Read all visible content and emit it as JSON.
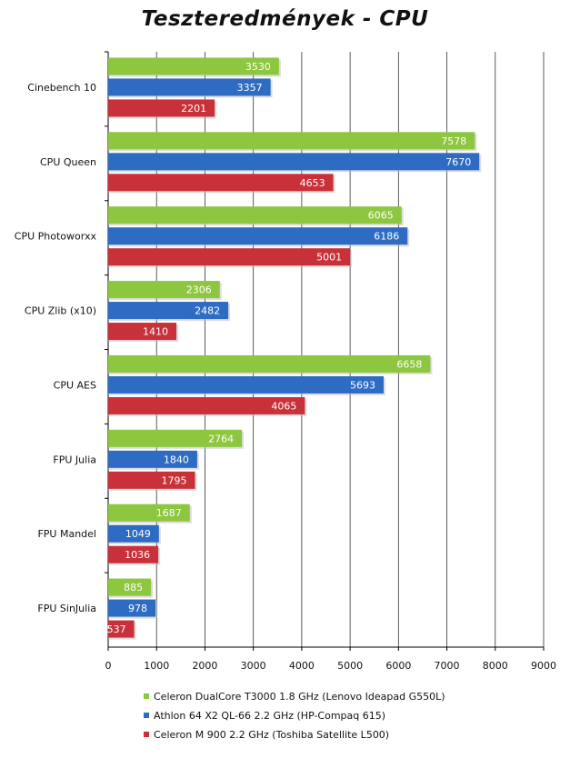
{
  "chart_data": {
    "type": "bar",
    "orientation": "horizontal",
    "title": "Teszteredmények - CPU",
    "categories": [
      "Cinebench 10",
      "CPU Queen",
      "CPU Photoworxx",
      "CPU Zlib (x10)",
      "CPU AES",
      "FPU Julia",
      "FPU Mandel",
      "FPU SinJulia"
    ],
    "series": [
      {
        "name": "Celeron DualCore T3000 1.8 GHz (Lenovo Ideapad G550L)",
        "color": "#8dc63f",
        "values": [
          3530,
          7578,
          6065,
          2306,
          6658,
          2764,
          1687,
          885
        ]
      },
      {
        "name": "Athlon 64 X2 QL-66 2.2 GHz (HP-Compaq 615)",
        "color": "#2e6cc4",
        "values": [
          3357,
          7670,
          6186,
          2482,
          5693,
          1840,
          1049,
          978
        ]
      },
      {
        "name": "Celeron M 900 2.2 GHz (Toshiba Satellite L500)",
        "color": "#c9313a",
        "values": [
          2201,
          4653,
          5001,
          1410,
          4065,
          1795,
          1036,
          537
        ]
      }
    ],
    "xlim": [
      0,
      9000
    ],
    "xticks": [
      "0",
      "1000",
      "2000",
      "3000",
      "4000",
      "5000",
      "6000",
      "7000",
      "8000",
      "9000"
    ],
    "grid": true,
    "data_labels": true,
    "legend_position": "bottom"
  }
}
